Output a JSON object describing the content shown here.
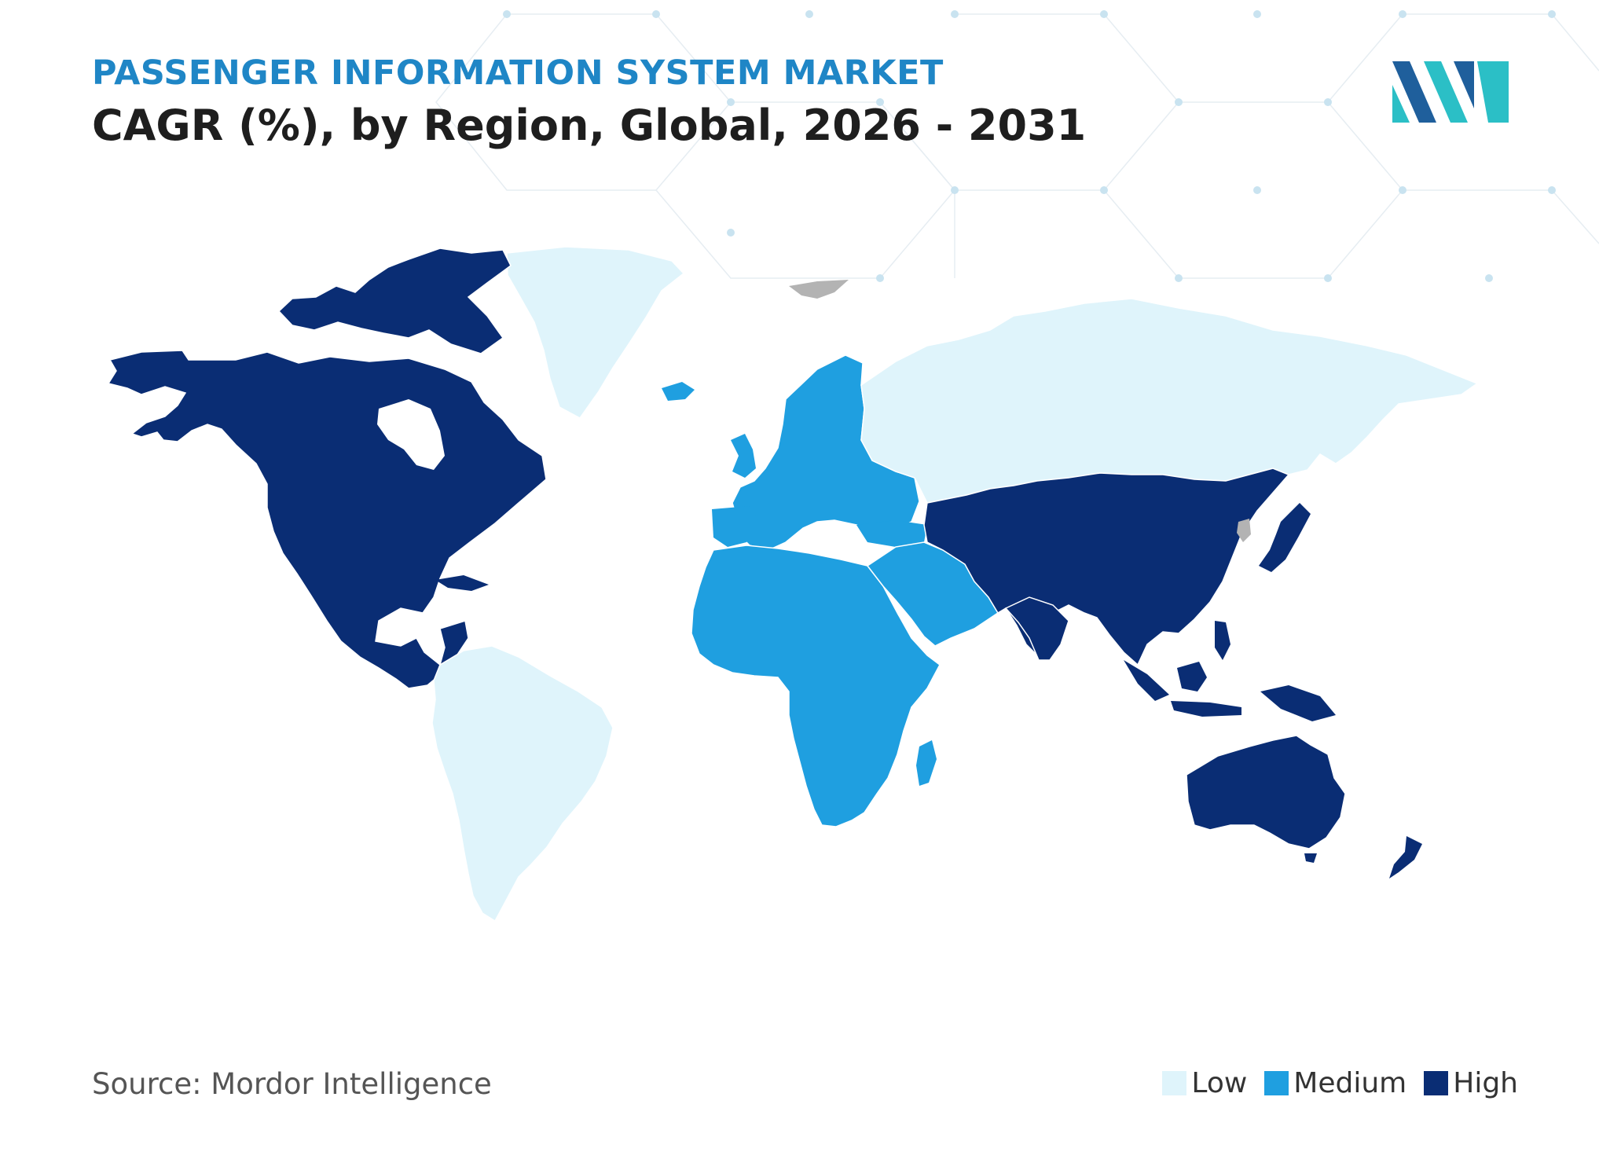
{
  "header": {
    "subtitle": "PASSENGER INFORMATION SYSTEM MARKET",
    "title": "CAGR (%), by Region, Global, 2026 - 2031"
  },
  "source": "Source: Mordor Intelligence",
  "legend": [
    {
      "label": "Low",
      "color": "#dff4fb"
    },
    {
      "label": "Medium",
      "color": "#1f9fe0"
    },
    {
      "label": "High",
      "color": "#0a2d74"
    }
  ],
  "colors": {
    "low": "#dff4fb",
    "medium": "#1f9fe0",
    "high": "#0a2d74",
    "no_data": "#b3b3b3",
    "border": "#ffffff",
    "title": "#1e1e1e",
    "subtitle": "#1f86c6"
  },
  "map_regions": [
    {
      "name": "north-america",
      "level": "high"
    },
    {
      "name": "greenland",
      "level": "low"
    },
    {
      "name": "south-america",
      "level": "low"
    },
    {
      "name": "europe",
      "level": "medium"
    },
    {
      "name": "africa",
      "level": "medium"
    },
    {
      "name": "middle-east",
      "level": "medium"
    },
    {
      "name": "russia",
      "level": "low"
    },
    {
      "name": "asia-pacific",
      "level": "high"
    },
    {
      "name": "australia",
      "level": "high"
    }
  ]
}
